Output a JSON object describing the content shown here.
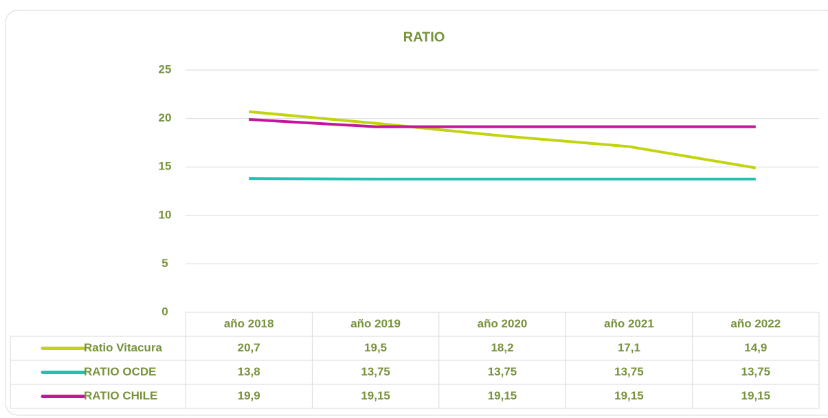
{
  "chart_data": {
    "type": "line",
    "title": "RATIO",
    "categories": [
      "año 2018",
      "año 2019",
      "año 2020",
      "año 2021",
      "año 2022"
    ],
    "series": [
      {
        "name": "Ratio Vitacura",
        "color": "#c2d40e",
        "values": [
          20.7,
          19.5,
          18.2,
          17.1,
          14.9
        ],
        "value_labels": [
          "20,7",
          "19,5",
          "18,2",
          "17,1",
          "14,9"
        ]
      },
      {
        "name": "RATIO OCDE",
        "color": "#22c1b1",
        "values": [
          13.8,
          13.75,
          13.75,
          13.75,
          13.75
        ],
        "value_labels": [
          "13,8",
          "13,75",
          "13,75",
          "13,75",
          "13,75"
        ]
      },
      {
        "name": "RATIO CHILE",
        "color": "#c3169a",
        "values": [
          19.9,
          19.15,
          19.15,
          19.15,
          19.15
        ],
        "value_labels": [
          "19,9",
          "19,15",
          "19,15",
          "19,15",
          "19,15"
        ]
      }
    ],
    "ylim": [
      0,
      25
    ],
    "yticks": [
      0,
      5,
      10,
      15,
      20,
      25
    ],
    "grid": true,
    "data_table": true
  }
}
